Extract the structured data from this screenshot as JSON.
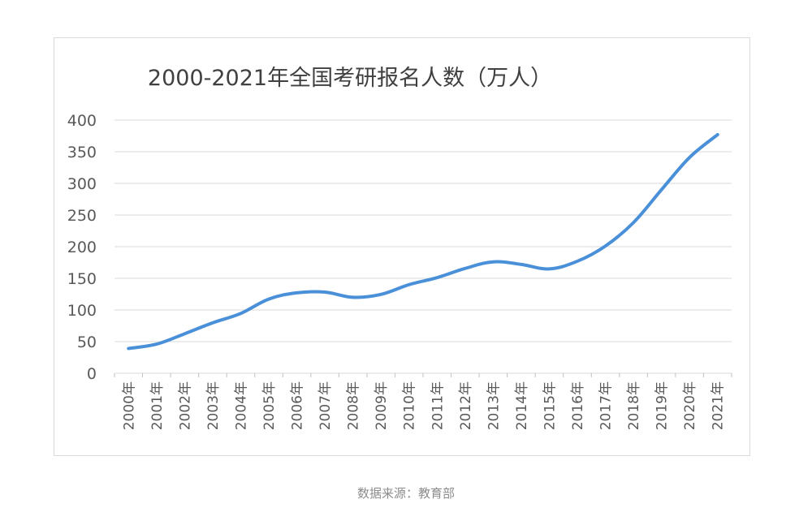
{
  "chart_data": {
    "type": "line",
    "title": "2000-2021年全国考研报名人数（万人）",
    "xlabel": "",
    "ylabel": "",
    "categories": [
      "2000年",
      "2001年",
      "2002年",
      "2003年",
      "2004年",
      "2005年",
      "2006年",
      "2007年",
      "2008年",
      "2009年",
      "2010年",
      "2011年",
      "2012年",
      "2013年",
      "2014年",
      "2015年",
      "2016年",
      "2017年",
      "2018年",
      "2019年",
      "2020年",
      "2021年"
    ],
    "series": [
      {
        "values": [
          39.2,
          46,
          62.4,
          79.7,
          94.5,
          117.2,
          127.1,
          128.2,
          120,
          124.6,
          140,
          151.1,
          165.6,
          176,
          172,
          164.9,
          177,
          201,
          238,
          290,
          341,
          377
        ]
      }
    ],
    "ylim": [
      0,
      400
    ],
    "yticks": [
      0,
      50,
      100,
      150,
      200,
      250,
      300,
      350,
      400
    ],
    "grid": true,
    "legend": "none",
    "line_color": "#4a90d9"
  },
  "source_note": "数据来源：教育部"
}
